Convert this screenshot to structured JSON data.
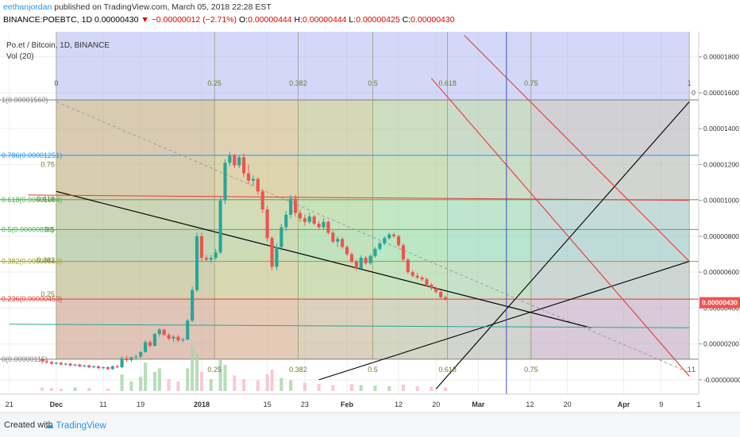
{
  "header": {
    "author": "eethanjordan",
    "published": "published on TradingView.com, March 05, 2018 22:28 EST",
    "symbol": "BINANCE:POEBTC, 1D",
    "last": "0.00000430",
    "change": "▼ −0.00000012 (−2.71%)",
    "o_label": "O:",
    "o": "0.00000444",
    "h_label": "H:",
    "h": "0.00000444",
    "l_label": "L:",
    "l": "0.00000425",
    "c_label": "C:",
    "c": "0.00000430"
  },
  "legend": {
    "title": "Po.et / Bitcoin, 1D, BINANCE",
    "volume": "Vol (20)"
  },
  "footer": {
    "created_with": "Created with",
    "brand": "TradingView"
  },
  "colors": {
    "up": "#26a69a",
    "down": "#ef5350",
    "axis_text": "#333333",
    "trendline": "#000000",
    "channel": "#ff0000",
    "vertical": "#3f51b5",
    "price_tag": "#ef5350"
  },
  "chart_data": {
    "type": "candlestick",
    "title": "Po.et / Bitcoin, 1D, BINANCE",
    "price_axis": {
      "ticks": [
        1.8e-05,
        1.6e-05,
        1.4e-05,
        1.2e-05,
        1e-05,
        8e-06,
        6e-06,
        4e-06,
        2e-06,
        0
      ],
      "tick_labels": [
        "0.00001800",
        "0.00001600",
        "0.00001400",
        "0.00001200",
        "0.00001000",
        "0.00000800",
        "0.00000600",
        "0.00000400",
        "0.00000200",
        "-0.00000000"
      ],
      "range": [
        -8e-07,
        1.94e-05
      ],
      "last_price": 4.3e-06,
      "last_price_label": "0.00000430"
    },
    "time_axis": {
      "start_date": "2017-11-21",
      "labels": [
        "21",
        "Dec",
        "11",
        "19",
        "2018",
        "15",
        "23",
        "Feb",
        "12",
        "20",
        "Mar",
        "12",
        "20",
        "Apr",
        "9",
        "1"
      ],
      "label_dates": [
        "2017-11-21",
        "2017-12-01",
        "2017-12-11",
        "2017-12-19",
        "2018-01-01",
        "2018-01-15",
        "2018-01-23",
        "2018-02-01",
        "2018-02-12",
        "2018-02-20",
        "2018-03-01",
        "2018-03-12",
        "2018-03-20",
        "2018-04-01",
        "2018-04-09",
        "2018-04-17"
      ],
      "range": [
        "2017-11-19",
        "2018-04-17"
      ]
    },
    "candles": [
      {
        "d": "2017-11-28",
        "o": 1.15,
        "h": 1.2,
        "l": 0.9,
        "c": 1.05
      },
      {
        "d": "2017-11-29",
        "o": 1.05,
        "h": 1.15,
        "l": 0.9,
        "c": 1.0
      },
      {
        "d": "2017-11-30",
        "o": 1.0,
        "h": 1.05,
        "l": 0.85,
        "c": 0.9
      },
      {
        "d": "2017-12-01",
        "o": 0.9,
        "h": 1.0,
        "l": 0.85,
        "c": 0.95
      },
      {
        "d": "2017-12-02",
        "o": 0.95,
        "h": 1.0,
        "l": 0.8,
        "c": 0.85
      },
      {
        "d": "2017-12-03",
        "o": 0.85,
        "h": 0.95,
        "l": 0.8,
        "c": 0.9
      },
      {
        "d": "2017-12-04",
        "o": 0.9,
        "h": 0.95,
        "l": 0.75,
        "c": 0.8
      },
      {
        "d": "2017-12-05",
        "o": 0.8,
        "h": 0.9,
        "l": 0.75,
        "c": 0.85
      },
      {
        "d": "2017-12-06",
        "o": 0.85,
        "h": 0.9,
        "l": 0.7,
        "c": 0.75
      },
      {
        "d": "2017-12-07",
        "o": 0.75,
        "h": 0.85,
        "l": 0.7,
        "c": 0.8
      },
      {
        "d": "2017-12-08",
        "o": 0.8,
        "h": 0.85,
        "l": 0.65,
        "c": 0.7
      },
      {
        "d": "2017-12-09",
        "o": 0.7,
        "h": 0.8,
        "l": 0.65,
        "c": 0.75
      },
      {
        "d": "2017-12-10",
        "o": 0.75,
        "h": 0.8,
        "l": 0.6,
        "c": 0.65
      },
      {
        "d": "2017-12-11",
        "o": 0.65,
        "h": 0.75,
        "l": 0.6,
        "c": 0.7
      },
      {
        "d": "2017-12-12",
        "o": 0.7,
        "h": 0.75,
        "l": 0.55,
        "c": 0.6
      },
      {
        "d": "2017-12-13",
        "o": 0.6,
        "h": 0.8,
        "l": 0.55,
        "c": 0.75
      },
      {
        "d": "2017-12-14",
        "o": 0.75,
        "h": 0.85,
        "l": 0.65,
        "c": 0.7
      },
      {
        "d": "2017-12-15",
        "o": 0.7,
        "h": 1.3,
        "l": 0.65,
        "c": 1.2
      },
      {
        "d": "2017-12-16",
        "o": 1.2,
        "h": 1.35,
        "l": 1.0,
        "c": 1.1
      },
      {
        "d": "2017-12-17",
        "o": 1.1,
        "h": 1.3,
        "l": 1.0,
        "c": 1.25
      },
      {
        "d": "2017-12-18",
        "o": 1.25,
        "h": 1.4,
        "l": 1.1,
        "c": 1.3
      },
      {
        "d": "2017-12-19",
        "o": 1.3,
        "h": 1.6,
        "l": 1.2,
        "c": 1.55
      },
      {
        "d": "2017-12-20",
        "o": 1.55,
        "h": 2.2,
        "l": 1.5,
        "c": 2.1
      },
      {
        "d": "2017-12-21",
        "o": 2.1,
        "h": 2.2,
        "l": 1.8,
        "c": 1.9
      },
      {
        "d": "2017-12-22",
        "o": 1.9,
        "h": 2.6,
        "l": 1.85,
        "c": 2.55
      },
      {
        "d": "2017-12-23",
        "o": 2.55,
        "h": 2.9,
        "l": 2.4,
        "c": 2.8
      },
      {
        "d": "2017-12-24",
        "o": 2.8,
        "h": 2.85,
        "l": 2.45,
        "c": 2.5
      },
      {
        "d": "2017-12-25",
        "o": 2.5,
        "h": 2.6,
        "l": 2.2,
        "c": 2.3
      },
      {
        "d": "2017-12-26",
        "o": 2.3,
        "h": 2.5,
        "l": 2.1,
        "c": 2.4
      },
      {
        "d": "2017-12-27",
        "o": 2.4,
        "h": 2.5,
        "l": 2.1,
        "c": 2.2
      },
      {
        "d": "2017-12-28",
        "o": 2.2,
        "h": 2.35,
        "l": 2.1,
        "c": 2.25
      },
      {
        "d": "2017-12-29",
        "o": 2.25,
        "h": 3.4,
        "l": 2.2,
        "c": 3.3
      },
      {
        "d": "2017-12-30",
        "o": 3.3,
        "h": 5.2,
        "l": 3.2,
        "c": 5.0
      },
      {
        "d": "2017-12-31",
        "o": 5.0,
        "h": 8.2,
        "l": 4.9,
        "c": 8.0
      },
      {
        "d": "2018-01-01",
        "o": 8.0,
        "h": 8.2,
        "l": 6.6,
        "c": 6.8
      },
      {
        "d": "2018-01-02",
        "o": 6.8,
        "h": 6.95,
        "l": 6.6,
        "c": 6.7
      },
      {
        "d": "2018-01-03",
        "o": 6.7,
        "h": 6.95,
        "l": 6.5,
        "c": 6.8
      },
      {
        "d": "2018-01-04",
        "o": 6.8,
        "h": 7.3,
        "l": 6.7,
        "c": 7.1
      },
      {
        "d": "2018-01-05",
        "o": 7.1,
        "h": 10.2,
        "l": 7.0,
        "c": 10.0
      },
      {
        "d": "2018-01-06",
        "o": 10.0,
        "h": 12.3,
        "l": 9.8,
        "c": 12.1
      },
      {
        "d": "2018-01-07",
        "o": 12.1,
        "h": 12.7,
        "l": 11.9,
        "c": 12.5
      },
      {
        "d": "2018-01-08",
        "o": 12.5,
        "h": 12.6,
        "l": 11.8,
        "c": 11.95
      },
      {
        "d": "2018-01-09",
        "o": 11.95,
        "h": 12.5,
        "l": 11.8,
        "c": 12.4
      },
      {
        "d": "2018-01-10",
        "o": 12.4,
        "h": 12.6,
        "l": 11.3,
        "c": 11.5
      },
      {
        "d": "2018-01-11",
        "o": 11.5,
        "h": 12.0,
        "l": 10.9,
        "c": 11.1
      },
      {
        "d": "2018-01-12",
        "o": 11.1,
        "h": 11.4,
        "l": 10.8,
        "c": 11.2
      },
      {
        "d": "2018-01-13",
        "o": 11.2,
        "h": 11.3,
        "l": 10.3,
        "c": 10.5
      },
      {
        "d": "2018-01-14",
        "o": 10.5,
        "h": 10.6,
        "l": 9.3,
        "c": 9.5
      },
      {
        "d": "2018-01-15",
        "o": 9.5,
        "h": 9.7,
        "l": 7.7,
        "c": 7.9
      },
      {
        "d": "2018-01-16",
        "o": 7.9,
        "h": 8.0,
        "l": 6.1,
        "c": 6.3
      },
      {
        "d": "2018-01-17",
        "o": 6.3,
        "h": 7.6,
        "l": 6.1,
        "c": 7.4
      },
      {
        "d": "2018-01-18",
        "o": 7.4,
        "h": 8.7,
        "l": 7.2,
        "c": 8.5
      },
      {
        "d": "2018-01-19",
        "o": 8.5,
        "h": 9.4,
        "l": 8.3,
        "c": 9.2
      },
      {
        "d": "2018-01-20",
        "o": 9.2,
        "h": 10.3,
        "l": 9.0,
        "c": 10.1
      },
      {
        "d": "2018-01-21",
        "o": 10.1,
        "h": 10.3,
        "l": 9.1,
        "c": 9.3
      },
      {
        "d": "2018-01-22",
        "o": 9.3,
        "h": 9.5,
        "l": 8.8,
        "c": 9.0
      },
      {
        "d": "2018-01-23",
        "o": 9.0,
        "h": 9.2,
        "l": 8.6,
        "c": 8.8
      },
      {
        "d": "2018-01-24",
        "o": 8.8,
        "h": 9.3,
        "l": 8.7,
        "c": 9.1
      },
      {
        "d": "2018-01-25",
        "o": 9.1,
        "h": 9.2,
        "l": 8.6,
        "c": 8.7
      },
      {
        "d": "2018-01-26",
        "o": 8.7,
        "h": 8.85,
        "l": 8.4,
        "c": 8.5
      },
      {
        "d": "2018-01-27",
        "o": 8.5,
        "h": 9.0,
        "l": 8.4,
        "c": 8.8
      },
      {
        "d": "2018-01-28",
        "o": 8.8,
        "h": 8.9,
        "l": 8.1,
        "c": 8.2
      },
      {
        "d": "2018-01-29",
        "o": 8.2,
        "h": 8.3,
        "l": 7.6,
        "c": 7.7
      },
      {
        "d": "2018-01-30",
        "o": 7.7,
        "h": 8.0,
        "l": 7.4,
        "c": 7.85
      },
      {
        "d": "2018-01-31",
        "o": 7.85,
        "h": 7.95,
        "l": 7.3,
        "c": 7.4
      },
      {
        "d": "2018-02-01",
        "o": 7.4,
        "h": 7.5,
        "l": 6.9,
        "c": 7.0
      },
      {
        "d": "2018-02-02",
        "o": 7.0,
        "h": 7.1,
        "l": 6.5,
        "c": 6.6
      },
      {
        "d": "2018-02-03",
        "o": 6.6,
        "h": 6.7,
        "l": 6.1,
        "c": 6.2
      },
      {
        "d": "2018-02-04",
        "o": 6.2,
        "h": 6.95,
        "l": 6.1,
        "c": 6.8
      },
      {
        "d": "2018-02-05",
        "o": 6.8,
        "h": 6.9,
        "l": 6.4,
        "c": 6.5
      },
      {
        "d": "2018-02-06",
        "o": 6.5,
        "h": 7.0,
        "l": 6.4,
        "c": 6.9
      },
      {
        "d": "2018-02-07",
        "o": 6.9,
        "h": 7.4,
        "l": 6.8,
        "c": 7.3
      },
      {
        "d": "2018-02-08",
        "o": 7.3,
        "h": 7.7,
        "l": 7.2,
        "c": 7.6
      },
      {
        "d": "2018-02-09",
        "o": 7.6,
        "h": 8.0,
        "l": 7.5,
        "c": 7.9
      },
      {
        "d": "2018-02-10",
        "o": 7.9,
        "h": 8.2,
        "l": 7.8,
        "c": 8.1
      },
      {
        "d": "2018-02-11",
        "o": 8.1,
        "h": 8.2,
        "l": 7.9,
        "c": 8.0
      },
      {
        "d": "2018-02-12",
        "o": 8.0,
        "h": 8.1,
        "l": 7.4,
        "c": 7.5
      },
      {
        "d": "2018-02-13",
        "o": 7.5,
        "h": 7.6,
        "l": 6.6,
        "c": 6.7
      },
      {
        "d": "2018-02-14",
        "o": 6.7,
        "h": 6.8,
        "l": 5.9,
        "c": 6.0
      },
      {
        "d": "2018-02-15",
        "o": 6.0,
        "h": 6.1,
        "l": 5.7,
        "c": 5.8
      },
      {
        "d": "2018-02-16",
        "o": 5.8,
        "h": 5.95,
        "l": 5.6,
        "c": 5.7
      },
      {
        "d": "2018-02-17",
        "o": 5.7,
        "h": 5.8,
        "l": 5.5,
        "c": 5.6
      },
      {
        "d": "2018-02-18",
        "o": 5.6,
        "h": 5.7,
        "l": 5.2,
        "c": 5.3
      },
      {
        "d": "2018-02-19",
        "o": 5.3,
        "h": 5.4,
        "l": 5.0,
        "c": 5.1
      },
      {
        "d": "2018-02-20",
        "o": 5.1,
        "h": 5.2,
        "l": 4.8,
        "c": 4.9
      },
      {
        "d": "2018-02-21",
        "o": 4.9,
        "h": 5.0,
        "l": 4.5,
        "c": 4.6
      },
      {
        "d": "2018-02-22",
        "o": 4.6,
        "h": 4.7,
        "l": 4.4,
        "c": 4.5
      }
    ],
    "volume": [
      {
        "d": "2017-11-28",
        "v": 0.3,
        "up": false
      },
      {
        "d": "2017-11-30",
        "v": 0.25,
        "up": false
      },
      {
        "d": "2017-12-02",
        "v": 0.2,
        "up": false
      },
      {
        "d": "2017-12-05",
        "v": 0.3,
        "up": true
      },
      {
        "d": "2017-12-08",
        "v": 0.25,
        "up": false
      },
      {
        "d": "2017-12-12",
        "v": 0.2,
        "up": false
      },
      {
        "d": "2017-12-15",
        "v": 1.4,
        "up": true
      },
      {
        "d": "2017-12-17",
        "v": 0.8,
        "up": true
      },
      {
        "d": "2017-12-19",
        "v": 1.2,
        "up": true
      },
      {
        "d": "2017-12-20",
        "v": 2.4,
        "up": true
      },
      {
        "d": "2017-12-22",
        "v": 1.6,
        "up": true
      },
      {
        "d": "2017-12-23",
        "v": 1.9,
        "up": true
      },
      {
        "d": "2017-12-25",
        "v": 1.0,
        "up": false
      },
      {
        "d": "2017-12-27",
        "v": 0.8,
        "up": false
      },
      {
        "d": "2017-12-29",
        "v": 1.9,
        "up": true
      },
      {
        "d": "2017-12-30",
        "v": 3.8,
        "up": true
      },
      {
        "d": "2017-12-31",
        "v": 3.2,
        "up": true
      },
      {
        "d": "2018-01-01",
        "v": 1.6,
        "up": false
      },
      {
        "d": "2018-01-03",
        "v": 1.0,
        "up": true
      },
      {
        "d": "2018-01-05",
        "v": 2.6,
        "up": true
      },
      {
        "d": "2018-01-06",
        "v": 2.2,
        "up": true
      },
      {
        "d": "2018-01-08",
        "v": 1.3,
        "up": false
      },
      {
        "d": "2018-01-10",
        "v": 1.0,
        "up": false
      },
      {
        "d": "2018-01-13",
        "v": 0.9,
        "up": false
      },
      {
        "d": "2018-01-15",
        "v": 1.4,
        "up": false
      },
      {
        "d": "2018-01-16",
        "v": 1.8,
        "up": false
      },
      {
        "d": "2018-01-18",
        "v": 1.1,
        "up": true
      },
      {
        "d": "2018-01-20",
        "v": 0.9,
        "up": true
      },
      {
        "d": "2018-01-23",
        "v": 0.7,
        "up": false
      },
      {
        "d": "2018-01-26",
        "v": 0.6,
        "up": false
      },
      {
        "d": "2018-01-29",
        "v": 0.5,
        "up": false
      },
      {
        "d": "2018-02-02",
        "v": 0.6,
        "up": false
      },
      {
        "d": "2018-02-04",
        "v": 0.5,
        "up": true
      },
      {
        "d": "2018-02-07",
        "v": 0.45,
        "up": true
      },
      {
        "d": "2018-02-10",
        "v": 0.4,
        "up": true
      },
      {
        "d": "2018-02-13",
        "v": 0.55,
        "up": false
      },
      {
        "d": "2018-02-16",
        "v": 0.4,
        "up": false
      },
      {
        "d": "2018-02-19",
        "v": 0.35,
        "up": false
      },
      {
        "d": "2018-02-22",
        "v": 0.3,
        "up": false
      }
    ],
    "fib_retracement": {
      "levels": [
        {
          "ratio_label": "1",
          "price": 1.56e-05,
          "label": "1(0.00001560)",
          "color": "#808080"
        },
        {
          "ratio_label": "0.786",
          "price": 1.251e-05,
          "label": "0.786(0.00001251)",
          "color": "#2196f3"
        },
        {
          "ratio_label": "0.618",
          "price": 1.004e-05,
          "label": "0.618(0.00001004)",
          "color": "#4caf50"
        },
        {
          "ratio_label": "0.5",
          "price": 8.38e-06,
          "label": "0.5(0.00000838)",
          "color": "#4caf50"
        },
        {
          "ratio_label": "0.382",
          "price": 6.6e-06,
          "label": "0.382(0.00000660)",
          "color": "#9e9d24"
        },
        {
          "ratio_label": "0.236",
          "price": 4.5e-06,
          "label": "0.236(0.00000450)",
          "color": "#e53935"
        },
        {
          "ratio_label": "0",
          "price": 1.15e-06,
          "label": "0(0.00000115)",
          "color": "#808080"
        }
      ]
    },
    "fib_time_zone": {
      "start": "2017-12-01",
      "end": "2018-04-15",
      "ratios": [
        "0",
        "0.25",
        "0.382",
        "0.5",
        "0.618",
        "0.75",
        "1"
      ]
    },
    "gann_labels": [
      "0.25",
      "0.382",
      "0.5",
      "0.618",
      "0.75"
    ],
    "gann_labels_bottom": [
      "0.25",
      "0.382",
      "0.5",
      "0.618",
      "0.75",
      "1"
    ],
    "right_edge_labels": [
      "0",
      "1"
    ],
    "vertical_line": "2018-03-07"
  }
}
